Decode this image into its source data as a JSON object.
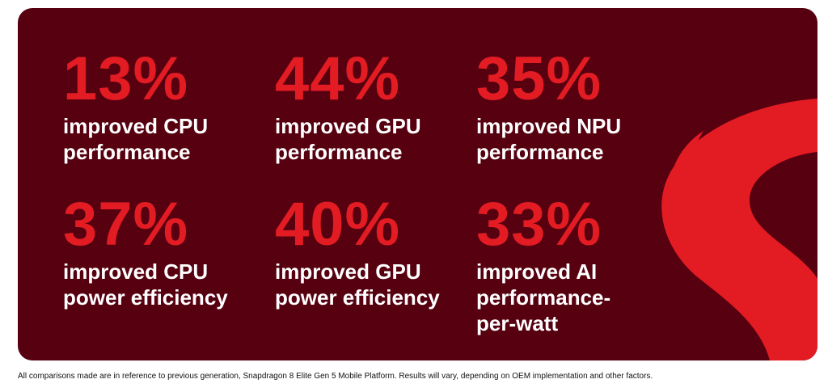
{
  "colors": {
    "background": "#560010",
    "accent": "#e31b23",
    "label": "#ffffff"
  },
  "logo_icon": "snapdragon-flame-icon",
  "stats": [
    {
      "value": "13%",
      "label": "improved CPU\nperformance"
    },
    {
      "value": "44%",
      "label": "improved GPU\nperformance"
    },
    {
      "value": "35%",
      "label": "improved NPU\nperformance"
    },
    {
      "value": "37%",
      "label": "improved CPU\npower efficiency"
    },
    {
      "value": "40%",
      "label": "improved GPU\npower efficiency"
    },
    {
      "value": "33%",
      "label": "improved AI\nperformance-\nper-watt"
    }
  ],
  "footnote": "All comparisons made are in reference to previous generation, Snapdragon 8 Elite Gen 5 Mobile Platform. Results will vary, depending on OEM implementation and other factors."
}
